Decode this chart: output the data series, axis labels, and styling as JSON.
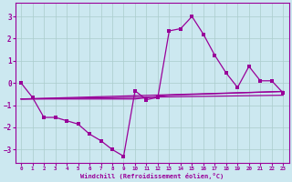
{
  "xlabel": "Windchill (Refroidissement éolien,°C)",
  "background_color": "#cce8f0",
  "grid_color": "#aacccc",
  "line_color": "#990099",
  "xlim": [
    -0.5,
    23.5
  ],
  "ylim": [
    -3.6,
    3.6
  ],
  "yticks": [
    -3,
    -2,
    -1,
    0,
    1,
    2,
    3
  ],
  "xticks": [
    0,
    1,
    2,
    3,
    4,
    5,
    6,
    7,
    8,
    9,
    10,
    11,
    12,
    13,
    14,
    15,
    16,
    17,
    18,
    19,
    20,
    21,
    22,
    23
  ],
  "series1_x": [
    0,
    1,
    2,
    3,
    4,
    5,
    6,
    7,
    8,
    9,
    10,
    11,
    12,
    13,
    14,
    15,
    16,
    17,
    18,
    19,
    20,
    21,
    22,
    23
  ],
  "series1_y": [
    0.0,
    -0.65,
    -1.55,
    -1.55,
    -1.7,
    -1.85,
    -2.3,
    -2.6,
    -3.0,
    -3.3,
    -0.35,
    -0.75,
    -0.65,
    2.35,
    2.45,
    3.0,
    2.2,
    1.25,
    0.45,
    -0.2,
    0.75,
    0.1,
    0.1,
    -0.45
  ],
  "series2_x": [
    0,
    23
  ],
  "series2_y": [
    -0.72,
    -0.38
  ],
  "series3_x": [
    0,
    23
  ],
  "series3_y": [
    -0.72,
    -0.55
  ],
  "series4_x": [
    0,
    10,
    13,
    23
  ],
  "series4_y": [
    -0.72,
    -0.72,
    -0.55,
    -0.38
  ]
}
